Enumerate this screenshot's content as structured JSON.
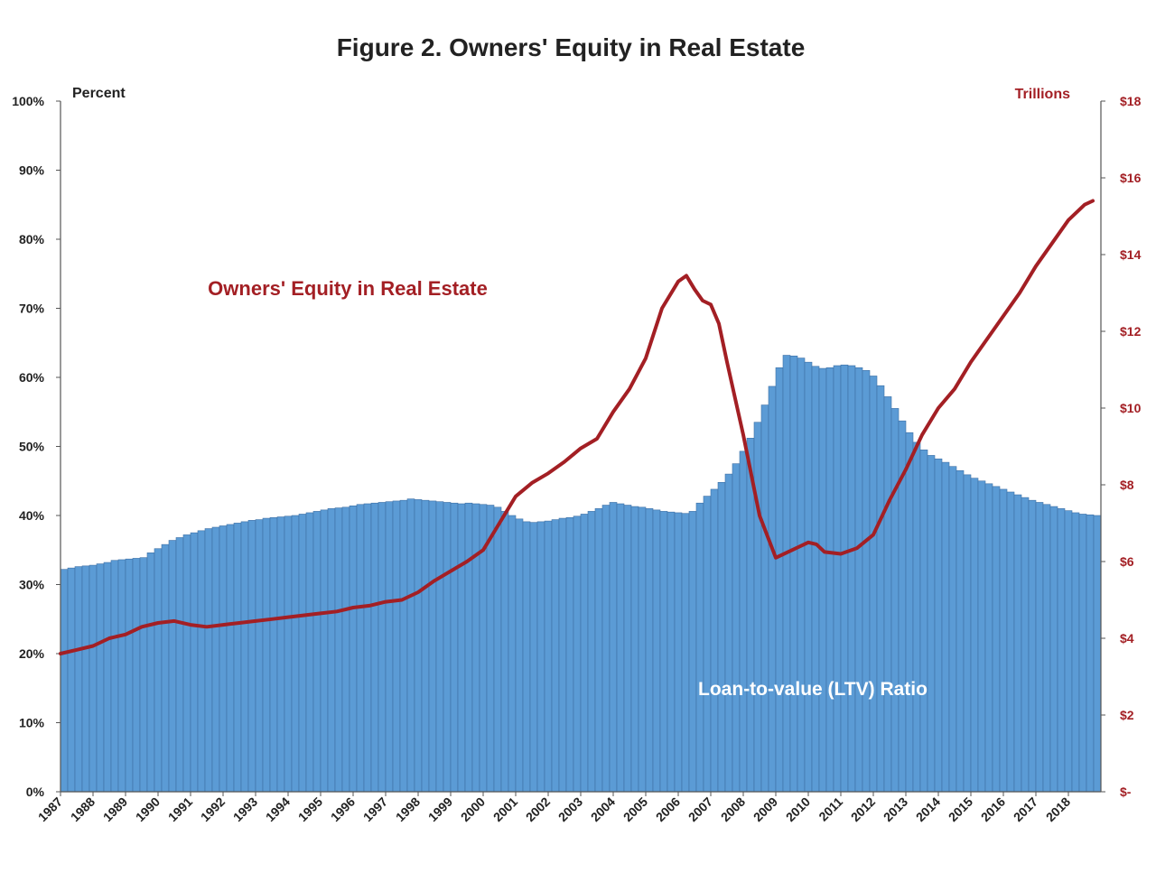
{
  "chart_data": {
    "type": "bar",
    "title": "Figure 2. Owners' Equity in Real Estate",
    "left_axis_label": "Percent",
    "right_axis_label": "Trillions",
    "left_ylim": [
      0,
      100
    ],
    "right_ylim": [
      0,
      18
    ],
    "left_ticks": [
      "0%",
      "10%",
      "20%",
      "30%",
      "40%",
      "50%",
      "60%",
      "70%",
      "80%",
      "90%",
      "100%"
    ],
    "right_ticks": [
      "$-",
      "$2",
      "$4",
      "$6",
      "$8",
      "$10",
      "$12",
      "$14",
      "$16",
      "$18"
    ],
    "x_ticks": [
      "1987",
      "1988",
      "1989",
      "1990",
      "1991",
      "1992",
      "1993",
      "1994",
      "1995",
      "1996",
      "1997",
      "1998",
      "1999",
      "2000",
      "2001",
      "2002",
      "2003",
      "2004",
      "2005",
      "2006",
      "2007",
      "2008",
      "2009",
      "2010",
      "2011",
      "2012",
      "2013",
      "2014",
      "2015",
      "2016",
      "2017",
      "2018"
    ],
    "grid": false,
    "legend": "none",
    "series": [
      {
        "name": "Loan-to-value (LTV) Ratio",
        "type": "bar",
        "axis": "left",
        "color": "#5b9bd5",
        "values": [
          32.2,
          32.4,
          32.6,
          32.7,
          32.8,
          33.0,
          33.2,
          33.5,
          33.6,
          33.7,
          33.8,
          33.9,
          34.6,
          35.2,
          35.8,
          36.4,
          36.8,
          37.2,
          37.5,
          37.8,
          38.1,
          38.3,
          38.5,
          38.7,
          38.9,
          39.1,
          39.3,
          39.4,
          39.6,
          39.7,
          39.8,
          39.9,
          40.0,
          40.2,
          40.4,
          40.6,
          40.8,
          41.0,
          41.1,
          41.2,
          41.4,
          41.6,
          41.7,
          41.8,
          41.9,
          42.0,
          42.1,
          42.2,
          42.4,
          42.3,
          42.2,
          42.1,
          42.0,
          41.9,
          41.8,
          41.7,
          41.8,
          41.7,
          41.6,
          41.5,
          41.2,
          40.6,
          40.0,
          39.5,
          39.1,
          39.0,
          39.1,
          39.2,
          39.4,
          39.6,
          39.7,
          39.9,
          40.2,
          40.6,
          41.0,
          41.5,
          41.9,
          41.7,
          41.5,
          41.3,
          41.2,
          41.0,
          40.8,
          40.6,
          40.5,
          40.4,
          40.3,
          40.6,
          41.8,
          42.8,
          43.8,
          44.8,
          46.0,
          47.5,
          49.3,
          51.2,
          53.5,
          56.0,
          58.7,
          61.4,
          63.2,
          63.1,
          62.8,
          62.2,
          61.6,
          61.3,
          61.4,
          61.7,
          61.8,
          61.7,
          61.4,
          61.0,
          60.2,
          58.8,
          57.2,
          55.5,
          53.7,
          52.0,
          50.6,
          49.5,
          48.7,
          48.2,
          47.7,
          47.1,
          46.5,
          45.9,
          45.4,
          45.0,
          44.6,
          44.2,
          43.8,
          43.4,
          43.0,
          42.6,
          42.2,
          41.9,
          41.6,
          41.3,
          41.0,
          40.7,
          40.4,
          40.2,
          40.1,
          40.0
        ]
      },
      {
        "name": "Owners' Equity in Real Estate",
        "type": "line",
        "axis": "right",
        "color": "#a31f24",
        "x": [
          1987.0,
          1987.5,
          1988.0,
          1988.5,
          1989.0,
          1989.5,
          1990.0,
          1990.5,
          1991.0,
          1991.5,
          1992.0,
          1992.5,
          1993.0,
          1993.5,
          1994.0,
          1994.5,
          1995.0,
          1995.5,
          1996.0,
          1996.5,
          1997.0,
          1997.5,
          1998.0,
          1998.5,
          1999.0,
          1999.5,
          2000.0,
          2000.5,
          2001.0,
          2001.5,
          2002.0,
          2002.5,
          2003.0,
          2003.5,
          2004.0,
          2004.5,
          2005.0,
          2005.5,
          2006.0,
          2006.25,
          2006.5,
          2006.75,
          2007.0,
          2007.25,
          2007.5,
          2008.0,
          2008.5,
          2009.0,
          2009.5,
          2010.0,
          2010.25,
          2010.5,
          2011.0,
          2011.5,
          2012.0,
          2012.5,
          2013.0,
          2013.5,
          2014.0,
          2014.5,
          2015.0,
          2015.5,
          2016.0,
          2016.5,
          2017.0,
          2017.5,
          2018.0,
          2018.5,
          2018.75
        ],
        "values": [
          3.6,
          3.7,
          3.8,
          4.0,
          4.1,
          4.3,
          4.4,
          4.45,
          4.35,
          4.3,
          4.35,
          4.4,
          4.45,
          4.5,
          4.55,
          4.6,
          4.65,
          4.7,
          4.8,
          4.85,
          4.95,
          5.0,
          5.2,
          5.5,
          5.75,
          6.0,
          6.3,
          7.0,
          7.7,
          8.05,
          8.3,
          8.6,
          8.95,
          9.2,
          9.9,
          10.5,
          11.3,
          12.6,
          13.3,
          13.45,
          13.1,
          12.8,
          12.7,
          12.2,
          11.2,
          9.3,
          7.2,
          6.1,
          6.3,
          6.5,
          6.45,
          6.25,
          6.2,
          6.35,
          6.7,
          7.6,
          8.4,
          9.3,
          10.0,
          10.5,
          11.2,
          11.8,
          12.4,
          13.0,
          13.7,
          14.3,
          14.9,
          15.3,
          15.4
        ]
      }
    ],
    "annotations": [
      {
        "text": "Owners' Equity in Real Estate",
        "color": "#a31f24"
      },
      {
        "text": "Loan-to-value (LTV) Ratio",
        "color": "#ffffff"
      }
    ]
  }
}
